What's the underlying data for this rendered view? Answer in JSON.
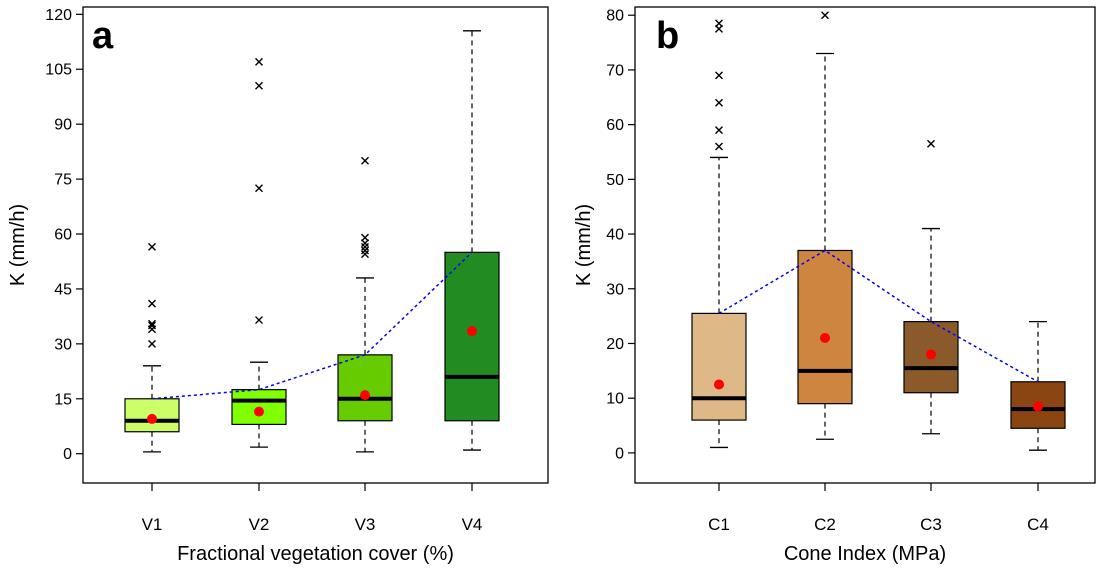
{
  "chart_data": [
    {
      "type": "box",
      "panel_label": "a",
      "xlabel": "Fractional vegetation cover (%)",
      "ylabel": "K (mm/h)",
      "ylim": [
        -8,
        122
      ],
      "yticks": [
        0,
        15,
        30,
        45,
        60,
        75,
        90,
        105,
        120
      ],
      "categories": [
        "V1",
        "V2",
        "V3",
        "V4"
      ],
      "colors": [
        "#ccff66",
        "#7fff00",
        "#66cc00",
        "#228b22"
      ],
      "boxes": [
        {
          "category": "V1",
          "whisker_low": 0.5,
          "q1": 6,
          "median": 9,
          "q3": 15,
          "whisker_high": 24,
          "mean": 9.5,
          "outliers": [
            30,
            34,
            35,
            35.5,
            41,
            56.5
          ]
        },
        {
          "category": "V2",
          "whisker_low": 1.8,
          "q1": 8,
          "median": 14.5,
          "q3": 17.5,
          "whisker_high": 25,
          "mean": 11.5,
          "outliers": [
            36.5,
            72.5,
            100.5,
            107
          ]
        },
        {
          "category": "V3",
          "whisker_low": 0.5,
          "q1": 9,
          "median": 15,
          "q3": 27,
          "whisker_high": 48,
          "mean": 16,
          "outliers": [
            54.5,
            55.5,
            56.5,
            57.5,
            59,
            80
          ]
        },
        {
          "category": "V4",
          "whisker_low": 1,
          "q1": 9,
          "median": 21,
          "q3": 55,
          "whisker_high": 115.5,
          "mean": 33.5,
          "outliers": []
        }
      ],
      "trend_line": [
        15,
        17.5,
        27,
        55
      ]
    },
    {
      "type": "box",
      "panel_label": "b",
      "xlabel": "Cone Index (MPa)",
      "ylabel": "K (mm/h)",
      "ylim": [
        -5.5,
        81.5
      ],
      "yticks": [
        0,
        10,
        20,
        30,
        40,
        50,
        60,
        70,
        80
      ],
      "categories": [
        "C1",
        "C2",
        "C3",
        "C4"
      ],
      "colors": [
        "#deb887",
        "#cd853f",
        "#8b5a2b",
        "#8b4513"
      ],
      "boxes": [
        {
          "category": "C1",
          "whisker_low": 1,
          "q1": 6,
          "median": 10,
          "q3": 25.5,
          "whisker_high": 54,
          "mean": 12.5,
          "outliers": [
            56,
            59,
            64,
            69,
            77.5,
            78.5
          ]
        },
        {
          "category": "C2",
          "whisker_low": 2.5,
          "q1": 9,
          "median": 15,
          "q3": 37,
          "whisker_high": 73,
          "mean": 21,
          "outliers": [
            80
          ]
        },
        {
          "category": "C3",
          "whisker_low": 3.5,
          "q1": 11,
          "median": 15.5,
          "q3": 24,
          "whisker_high": 41,
          "mean": 18,
          "outliers": [
            56.5
          ]
        },
        {
          "category": "C4",
          "whisker_low": 0.5,
          "q1": 4.5,
          "median": 8,
          "q3": 13,
          "whisker_high": 24,
          "mean": 8.5,
          "outliers": []
        }
      ],
      "trend_line": [
        25.5,
        37,
        24,
        13
      ]
    }
  ],
  "style": {
    "median_color": "#000000",
    "mean_marker_color": "#ff0000",
    "trend_line_color": "#0000ff",
    "whisker_style": "dashed",
    "outlier_marker": "x"
  }
}
